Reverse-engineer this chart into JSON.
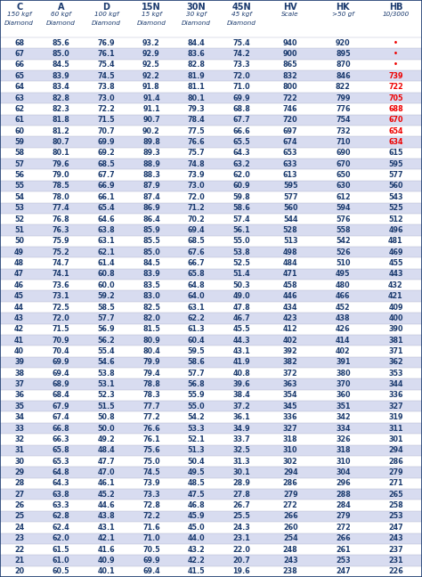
{
  "headers": [
    "C",
    "A",
    "D",
    "15N",
    "30N",
    "45N",
    "HV",
    "HK",
    "HB"
  ],
  "subheaders1": [
    "150 kgf",
    "60 kgf",
    "100 kgf",
    "15 kgf",
    "30 kgf",
    "45 kgf",
    "Scale",
    ">50 gf",
    "10/3000"
  ],
  "subheaders2": [
    "Diamond",
    "Diamond",
    "Diamond",
    "Diamond",
    "Diamond",
    "Diamond",
    "",
    "",
    ""
  ],
  "rows": [
    [
      68,
      85.6,
      76.9,
      93.2,
      84.4,
      75.4,
      940,
      920,
      "-"
    ],
    [
      67,
      85.0,
      76.1,
      92.9,
      83.6,
      74.2,
      900,
      895,
      "-"
    ],
    [
      66,
      84.5,
      75.4,
      92.5,
      82.8,
      73.3,
      865,
      870,
      "-"
    ],
    [
      65,
      83.9,
      74.5,
      92.2,
      81.9,
      72.0,
      832,
      846,
      739
    ],
    [
      64,
      83.4,
      73.8,
      91.8,
      81.1,
      71.0,
      800,
      822,
      722
    ],
    [
      63,
      82.8,
      73.0,
      91.4,
      80.1,
      69.9,
      722,
      799,
      705
    ],
    [
      62,
      82.3,
      72.2,
      91.1,
      79.3,
      68.8,
      746,
      776,
      688
    ],
    [
      61,
      81.8,
      71.5,
      90.7,
      78.4,
      67.7,
      720,
      754,
      670
    ],
    [
      60,
      81.2,
      70.7,
      90.2,
      77.5,
      66.6,
      697,
      732,
      654
    ],
    [
      59,
      80.7,
      69.9,
      89.8,
      76.6,
      65.5,
      674,
      710,
      634
    ],
    [
      58,
      80.1,
      69.2,
      89.3,
      75.7,
      64.3,
      653,
      690,
      615
    ],
    [
      57,
      79.6,
      68.5,
      88.9,
      74.8,
      63.2,
      633,
      670,
      595
    ],
    [
      56,
      79.0,
      67.7,
      88.3,
      73.9,
      62.0,
      613,
      650,
      577
    ],
    [
      55,
      78.5,
      66.9,
      87.9,
      73.0,
      60.9,
      595,
      630,
      560
    ],
    [
      54,
      78.0,
      66.1,
      87.4,
      72.0,
      59.8,
      577,
      612,
      543
    ],
    [
      53,
      77.4,
      65.4,
      86.9,
      71.2,
      58.6,
      560,
      594,
      525
    ],
    [
      52,
      76.8,
      64.6,
      86.4,
      70.2,
      57.4,
      544,
      576,
      512
    ],
    [
      51,
      76.3,
      63.8,
      85.9,
      69.4,
      56.1,
      528,
      558,
      496
    ],
    [
      50,
      75.9,
      63.1,
      85.5,
      68.5,
      55.0,
      513,
      542,
      481
    ],
    [
      49,
      75.2,
      62.1,
      85.0,
      67.6,
      53.8,
      498,
      526,
      469
    ],
    [
      48,
      74.7,
      61.4,
      84.5,
      66.7,
      52.5,
      484,
      510,
      455
    ],
    [
      47,
      74.1,
      60.8,
      83.9,
      65.8,
      51.4,
      471,
      495,
      443
    ],
    [
      46,
      73.6,
      60.0,
      83.5,
      64.8,
      50.3,
      458,
      480,
      432
    ],
    [
      45,
      73.1,
      59.2,
      83.0,
      64.0,
      49.0,
      446,
      466,
      421
    ],
    [
      44,
      72.5,
      58.5,
      82.5,
      63.1,
      47.8,
      434,
      452,
      409
    ],
    [
      43,
      72.0,
      57.7,
      82.0,
      62.2,
      46.7,
      423,
      438,
      400
    ],
    [
      42,
      71.5,
      56.9,
      81.5,
      61.3,
      45.5,
      412,
      426,
      390
    ],
    [
      41,
      70.9,
      56.2,
      80.9,
      60.4,
      44.3,
      402,
      414,
      381
    ],
    [
      40,
      70.4,
      55.4,
      80.4,
      59.5,
      43.1,
      392,
      402,
      371
    ],
    [
      39,
      69.9,
      54.6,
      79.9,
      58.6,
      41.9,
      382,
      391,
      362
    ],
    [
      38,
      69.4,
      53.8,
      79.4,
      57.7,
      40.8,
      372,
      380,
      353
    ],
    [
      37,
      68.9,
      53.1,
      78.8,
      56.8,
      39.6,
      363,
      370,
      344
    ],
    [
      36,
      68.4,
      52.3,
      78.3,
      55.9,
      38.4,
      354,
      360,
      336
    ],
    [
      35,
      67.9,
      51.5,
      77.7,
      55.0,
      37.2,
      345,
      351,
      327
    ],
    [
      34,
      67.4,
      50.8,
      77.2,
      54.2,
      36.1,
      336,
      342,
      319
    ],
    [
      33,
      66.8,
      50.0,
      76.6,
      53.3,
      34.9,
      327,
      334,
      311
    ],
    [
      32,
      66.3,
      49.2,
      76.1,
      52.1,
      33.7,
      318,
      326,
      301
    ],
    [
      31,
      65.8,
      48.4,
      75.6,
      51.3,
      32.5,
      310,
      318,
      294
    ],
    [
      30,
      65.3,
      47.7,
      75.0,
      50.4,
      31.3,
      302,
      310,
      286
    ],
    [
      29,
      64.8,
      47.0,
      74.5,
      49.5,
      30.1,
      294,
      304,
      279
    ],
    [
      28,
      64.3,
      46.1,
      73.9,
      48.5,
      28.9,
      286,
      296,
      271
    ],
    [
      27,
      63.8,
      45.2,
      73.3,
      47.5,
      27.8,
      279,
      288,
      265
    ],
    [
      26,
      63.3,
      44.6,
      72.8,
      46.8,
      26.7,
      272,
      284,
      258
    ],
    [
      25,
      62.8,
      43.8,
      72.2,
      45.9,
      25.5,
      266,
      279,
      253
    ],
    [
      24,
      62.4,
      43.1,
      71.6,
      45.0,
      24.3,
      260,
      272,
      247
    ],
    [
      23,
      62.0,
      42.1,
      71.0,
      44.0,
      23.1,
      254,
      266,
      243
    ],
    [
      22,
      61.5,
      41.6,
      70.5,
      43.2,
      22.0,
      248,
      261,
      237
    ],
    [
      21,
      61.0,
      40.9,
      69.9,
      42.2,
      20.7,
      243,
      253,
      231
    ],
    [
      20,
      60.5,
      40.1,
      69.4,
      41.5,
      19.6,
      238,
      247,
      226
    ]
  ],
  "hb_red_threshold": 630,
  "red_color": "#EE0000",
  "blue_color": "#1A3A6E",
  "row_bg_even": "#D8DCF0",
  "row_bg_odd": "#FFFFFF",
  "col_props": [
    0.082,
    0.096,
    0.096,
    0.096,
    0.096,
    0.096,
    0.112,
    0.112,
    0.112
  ]
}
